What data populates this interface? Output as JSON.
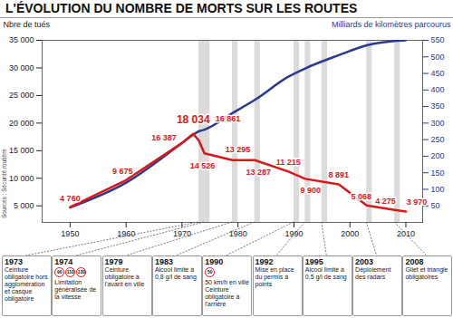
{
  "chart_data": {
    "type": "line",
    "title": "L'ÉVOLUTION DU NOMBRE DE MORTS SUR LES ROUTES",
    "x": [
      1950,
      1960,
      1970,
      1972,
      1973,
      1974,
      1979,
      1983,
      1989,
      1992,
      1998,
      2003,
      2008,
      2010
    ],
    "xlim": [
      1945,
      2013
    ],
    "xticks": [
      1950,
      1960,
      1970,
      1980,
      1990,
      2000,
      2010
    ],
    "ylim": [
      2000,
      35000
    ],
    "yticks": [
      {
        "value": 5000,
        "label": "5 000"
      },
      {
        "value": 10000,
        "label": "10 000"
      },
      {
        "value": 15000,
        "label": "15 000"
      },
      {
        "value": 20000,
        "label": "20 000"
      },
      {
        "value": 25000,
        "label": "25 000"
      },
      {
        "value": 30000,
        "label": "30 000"
      },
      {
        "value": 35000,
        "label": "35 000"
      }
    ],
    "y2lim": [
      0,
      550
    ],
    "y2ticks": [
      50,
      100,
      150,
      200,
      250,
      300,
      350,
      400,
      450,
      500,
      550
    ],
    "grid": false,
    "data_labels": true,
    "series": [
      {
        "name": "Nbre de tués",
        "color": "#d7191c",
        "values": [
          4760,
          9675,
          16387,
          18034,
          16861,
          14526,
          13295,
          13287,
          11215,
          9900,
          8891,
          5068,
          4275,
          3970
        ],
        "value_labels": [
          "4 760",
          "9 675",
          "16 387",
          "18 034",
          "16 861",
          "14 526",
          "13 295",
          "13 287",
          "11 215",
          "9 900",
          "8 891",
          "5 068",
          "4 275",
          "3 970"
        ]
      },
      {
        "name": "Milliards de kilomètres parcourus",
        "color": "#2b3990",
        "axis": "y2",
        "values": [
          45,
          120,
          240,
          265,
          275,
          280,
          330,
          370,
          440,
          465,
          505,
          535,
          548,
          550
        ]
      }
    ],
    "annotations": [
      {
        "year": 1973,
        "text": [
          "Ceinture obligatoire hors agglomération et casque obligatoire"
        ]
      },
      {
        "year": 1974,
        "signs": [
          90,
          110,
          130
        ],
        "text": [
          "Limitation généralisée de la vitesse"
        ]
      },
      {
        "year": 1979,
        "text": [
          "Ceinture obligatoire à l'avant en ville"
        ]
      },
      {
        "year": 1983,
        "text": [
          "Alcool limité à 0,8 g/l de sang"
        ]
      },
      {
        "year": 1990,
        "signs": [
          50
        ],
        "text": [
          "50 km/h en ville",
          "Ceinture obligatoire à l'arrière"
        ]
      },
      {
        "year": 1992,
        "text": [
          "Mise en place du permis à points"
        ]
      },
      {
        "year": 1995,
        "text": [
          "Alcool limité à 0,5 g/l de sang"
        ]
      },
      {
        "year": 2003,
        "text": [
          "Déploiement des radars"
        ]
      },
      {
        "year": 2008,
        "text": [
          "Gilet et triangle obligatoires"
        ]
      }
    ],
    "source": "Sources : Sécurité routière"
  }
}
